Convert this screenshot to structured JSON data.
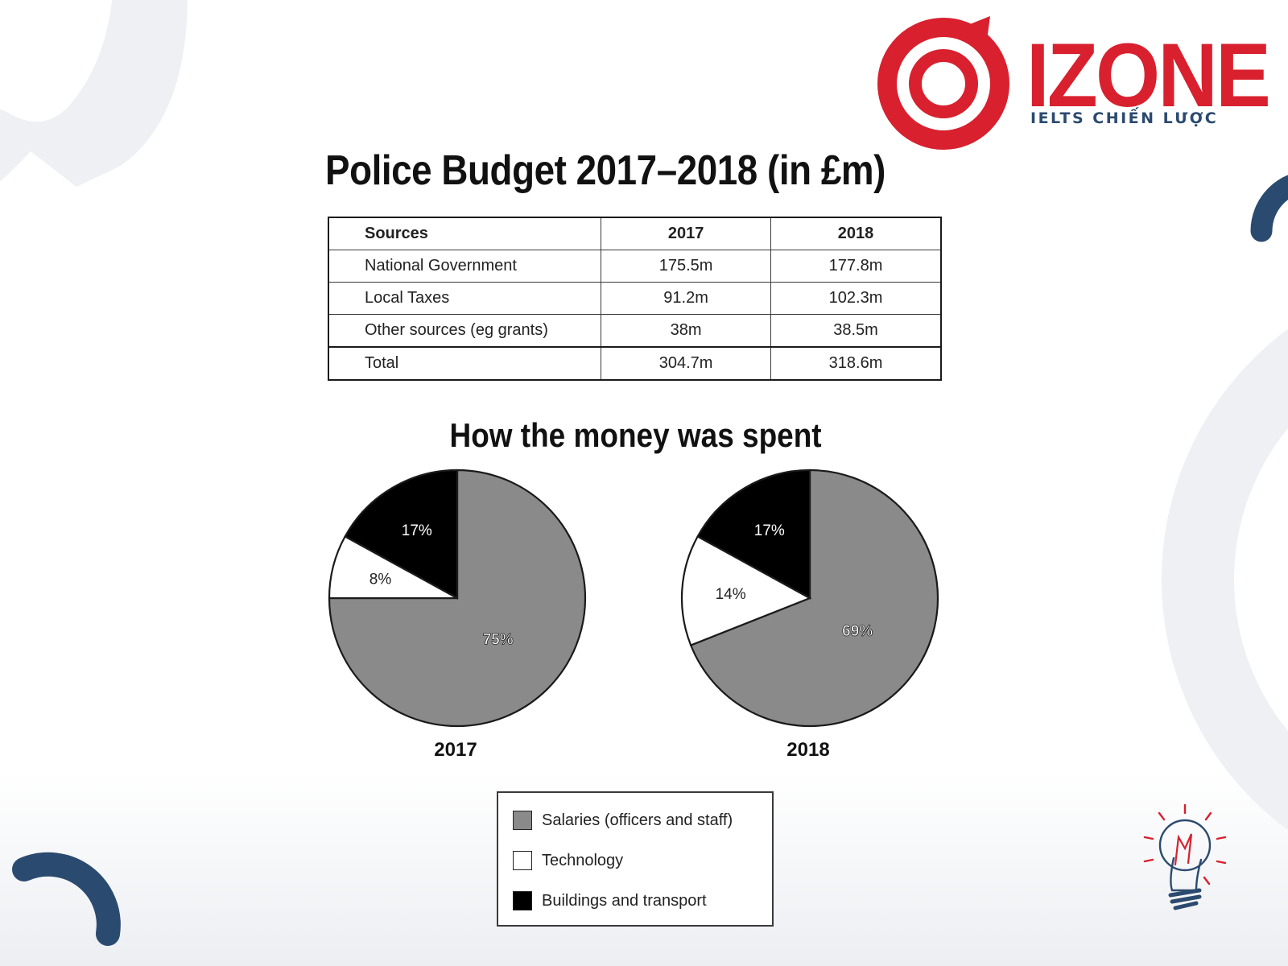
{
  "brand": {
    "name": "IZONE",
    "tagline": "IELTS CHIẾN LƯỢC",
    "color": "#d8202e",
    "tagline_color": "#2b4a6f"
  },
  "main_title": "Police Budget 2017–2018 (in £m)",
  "table": {
    "headers": [
      "Sources",
      "2017",
      "2018"
    ],
    "rows": [
      [
        "National Government",
        "175.5m",
        "177.8m"
      ],
      [
        "Local Taxes",
        "91.2m",
        "102.3m"
      ],
      [
        "Other sources (eg grants)",
        "38m",
        "38.5m"
      ]
    ],
    "total": [
      "Total",
      "304.7m",
      "318.6m"
    ]
  },
  "chart_title": "How the money was spent",
  "chart_data": [
    {
      "type": "pie",
      "caption": "2017",
      "slices": [
        {
          "name": "Salaries (officers and staff)",
          "value": 75,
          "label": "75%",
          "color": "#8a8a8a"
        },
        {
          "name": "Technology",
          "value": 8,
          "label": "8%",
          "color": "#ffffff"
        },
        {
          "name": "Buildings and transport",
          "value": 17,
          "label": "17%",
          "color": "#000000"
        }
      ]
    },
    {
      "type": "pie",
      "caption": "2018",
      "slices": [
        {
          "name": "Salaries (officers and staff)",
          "value": 69,
          "label": "69%",
          "color": "#8a8a8a"
        },
        {
          "name": "Technology",
          "value": 14,
          "label": "14%",
          "color": "#ffffff"
        },
        {
          "name": "Buildings and transport",
          "value": 17,
          "label": "17%",
          "color": "#000000"
        }
      ]
    }
  ],
  "legend": [
    {
      "label": "Salaries (officers and staff)",
      "color": "#8a8a8a"
    },
    {
      "label": "Technology",
      "color": "#ffffff"
    },
    {
      "label": "Buildings and transport",
      "color": "#000000"
    }
  ],
  "decor": {
    "shape_color": "#eef0f3",
    "accent_navy": "#2b4a6f",
    "bulb_icon": "lightbulb-icon"
  }
}
